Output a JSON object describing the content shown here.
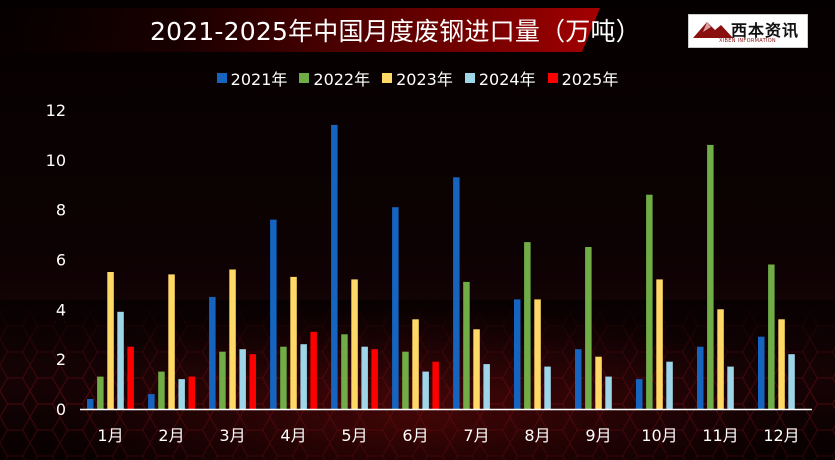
{
  "title": "2021-2025年中国月度废钢进口量（万吨）",
  "logo": {
    "text": "西本资讯",
    "subtext": "XIBEN INFORMATION"
  },
  "colors": {
    "2021年": "#1565c0",
    "2022年": "#70ad47",
    "2023年": "#ffd966",
    "2024年": "#9dd6e8",
    "2025年": "#ff0000"
  },
  "chart_data": {
    "type": "bar",
    "categories": [
      "1月",
      "2月",
      "3月",
      "4月",
      "5月",
      "6月",
      "7月",
      "8月",
      "9月",
      "10月",
      "11月",
      "12月"
    ],
    "series": [
      {
        "name": "2021年",
        "values": [
          0.4,
          0.6,
          4.5,
          7.6,
          11.4,
          8.1,
          9.3,
          4.4,
          2.4,
          1.2,
          2.5,
          2.9
        ]
      },
      {
        "name": "2022年",
        "values": [
          1.3,
          1.5,
          2.3,
          2.5,
          3.0,
          2.3,
          5.1,
          6.7,
          6.5,
          8.6,
          10.6,
          5.8
        ]
      },
      {
        "name": "2023年",
        "values": [
          5.5,
          5.4,
          5.6,
          5.3,
          5.2,
          3.6,
          3.2,
          4.4,
          2.1,
          5.2,
          4.0,
          3.6
        ]
      },
      {
        "name": "2024年",
        "values": [
          3.9,
          1.2,
          2.4,
          2.6,
          2.5,
          1.5,
          1.8,
          1.7,
          1.3,
          1.9,
          1.7,
          2.2
        ]
      },
      {
        "name": "2025年",
        "values": [
          2.5,
          1.3,
          2.2,
          3.1,
          2.4,
          1.9,
          null,
          null,
          null,
          null,
          null,
          null
        ]
      }
    ],
    "ylim": [
      0,
      12
    ],
    "yticks": [
      "0",
      "2",
      "4",
      "6",
      "8",
      "10",
      "12"
    ],
    "grid": false,
    "legend_position": "top-center"
  }
}
